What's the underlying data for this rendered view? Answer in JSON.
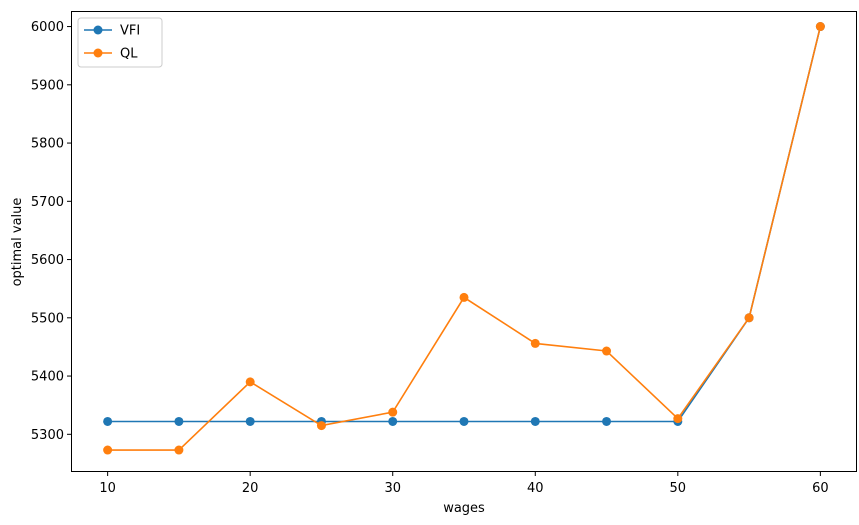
{
  "chart_data": {
    "type": "line",
    "title": "",
    "xlabel": "wages",
    "ylabel": "optimal value",
    "xlim": [
      7.5,
      62.5
    ],
    "ylim": [
      5237,
      6025
    ],
    "xticks": [
      10,
      20,
      30,
      40,
      50,
      60
    ],
    "yticks": [
      5300,
      5400,
      5500,
      5600,
      5700,
      5800,
      5900,
      6000
    ],
    "grid": false,
    "legend_position": "top-left",
    "x": [
      10,
      15,
      20,
      25,
      30,
      35,
      40,
      45,
      50,
      55,
      60
    ],
    "series": [
      {
        "name": "VFI",
        "color": "#1f77b4",
        "marker": "circle",
        "values": [
          5322,
          5322,
          5322,
          5322,
          5322,
          5322,
          5322,
          5322,
          5322,
          5500,
          6000
        ]
      },
      {
        "name": "QL",
        "color": "#ff7f0e",
        "marker": "circle",
        "values": [
          5273,
          5273,
          5390,
          5315,
          5338,
          5535,
          5456,
          5443,
          5327,
          5500,
          6000
        ]
      }
    ]
  }
}
